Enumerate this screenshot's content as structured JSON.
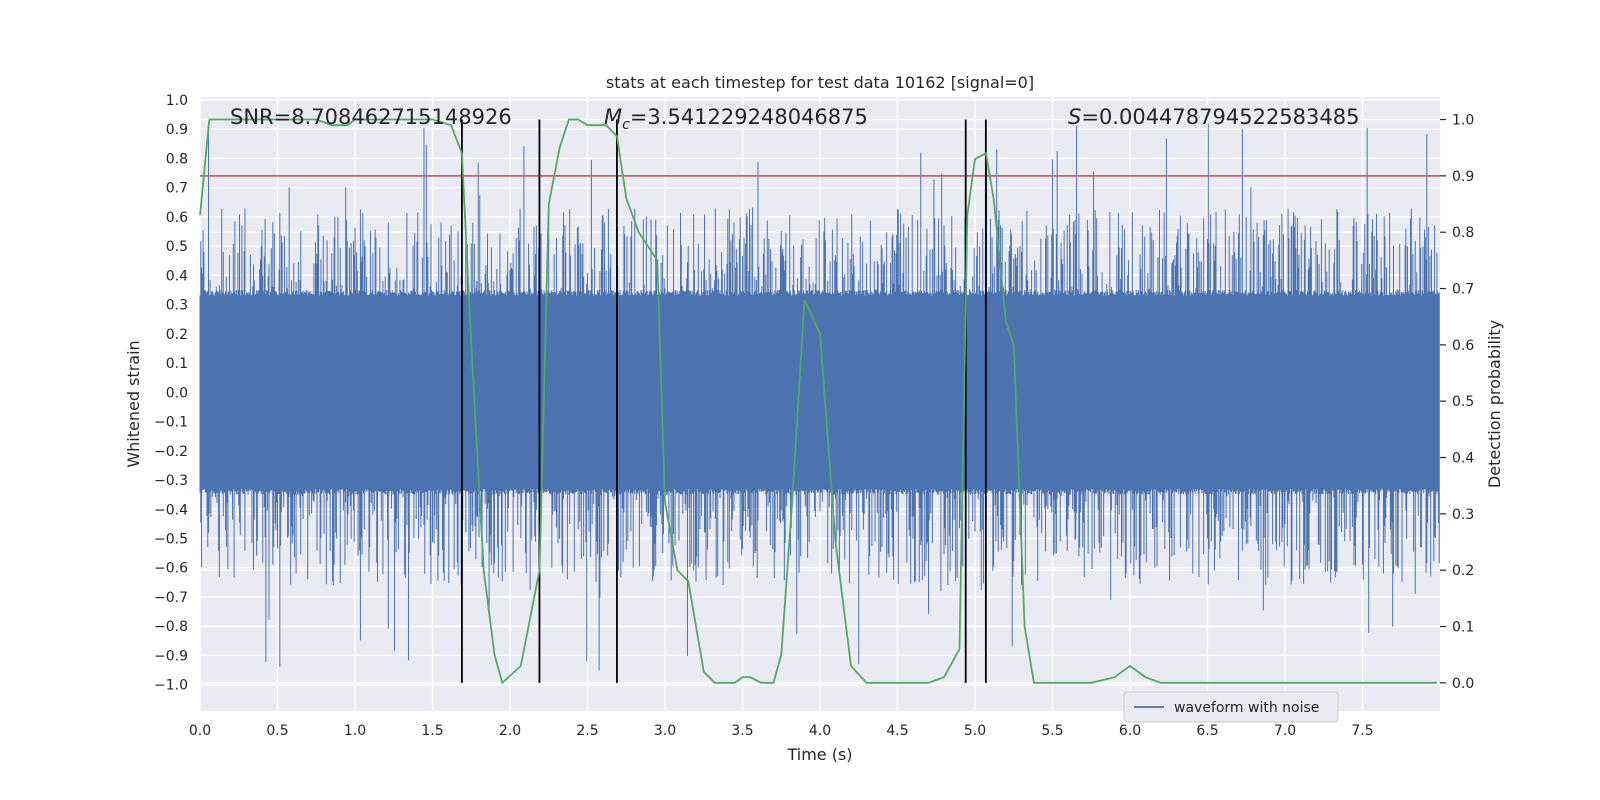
{
  "chart_data": {
    "type": "line",
    "title": "stats at each timestep for test data 10162 [signal=0]",
    "xlabel": "Time (s)",
    "ylabel_left": "Whitened strain",
    "ylabel_right": "Detection probability",
    "xlim": [
      0.0,
      8.0
    ],
    "ylim_left": [
      -1.09,
      1.01
    ],
    "ylim_right": [
      -0.05,
      1.04
    ],
    "xticks": [
      "0.0",
      "0.5",
      "1.0",
      "1.5",
      "2.0",
      "2.5",
      "3.0",
      "3.5",
      "4.0",
      "4.5",
      "5.0",
      "5.5",
      "6.0",
      "6.5",
      "7.0",
      "7.5"
    ],
    "yticks_left": [
      "1.0",
      "0.9",
      "0.8",
      "0.7",
      "0.6",
      "0.5",
      "0.4",
      "0.3",
      "0.2",
      "0.1",
      "0.0",
      "−0.1",
      "−0.2",
      "−0.3",
      "−0.4",
      "−0.5",
      "−0.6",
      "−0.7",
      "−0.8",
      "−0.9",
      "−1.0"
    ],
    "yticks_right": [
      "1.0",
      "0.9",
      "0.8",
      "0.7",
      "0.6",
      "0.5",
      "0.4",
      "0.3",
      "0.2",
      "0.1",
      "0.0"
    ],
    "grid": true,
    "legend": {
      "position": "lower-right",
      "entries": [
        "waveform with noise"
      ]
    },
    "annotations": {
      "snr": "SNR=8.708462715148926",
      "mc_symbol": "M",
      "mc_sub": "c",
      "mc_value": "=3.541229248046875",
      "s_symbol": "S",
      "s_value": "=0.004478794522583485"
    },
    "threshold": {
      "value": 0.9,
      "axis": "right",
      "color": "#c44e52"
    },
    "vlines_x": [
      1.69,
      2.19,
      2.69,
      4.94,
      5.07
    ],
    "series": [
      {
        "name": "waveform with noise",
        "axis": "left",
        "color": "#4c72b0",
        "kind": "noise-envelope",
        "sample_count": 1600,
        "core_amplitude": 0.33,
        "spike_max": 0.92,
        "spike_min": -1.0
      },
      {
        "name": "detection probability",
        "axis": "right",
        "color": "#55a868",
        "x": [
          0.0,
          0.06,
          0.12,
          0.25,
          0.5,
          0.75,
          0.85,
          0.95,
          1.0,
          1.25,
          1.5,
          1.62,
          1.69,
          1.75,
          1.83,
          1.9,
          1.95,
          2.07,
          2.19,
          2.25,
          2.32,
          2.38,
          2.44,
          2.5,
          2.62,
          2.69,
          2.75,
          2.83,
          2.95,
          3.0,
          3.08,
          3.15,
          3.25,
          3.32,
          3.45,
          3.5,
          3.55,
          3.62,
          3.7,
          3.75,
          3.82,
          3.9,
          4.0,
          4.1,
          4.2,
          4.3,
          4.5,
          4.62,
          4.7,
          4.8,
          4.9,
          4.95,
          5.0,
          5.07,
          5.12,
          5.2,
          5.25,
          5.32,
          5.38,
          5.5,
          5.75,
          5.9,
          6.0,
          6.1,
          6.2,
          6.3,
          6.4,
          6.5,
          6.6,
          6.7,
          6.8,
          6.9,
          7.0,
          7.2,
          7.3,
          7.5,
          7.7,
          7.8,
          7.9,
          7.98
        ],
        "values": [
          0.83,
          1.0,
          1.0,
          1.0,
          1.0,
          1.0,
          0.99,
          0.99,
          1.0,
          1.0,
          1.0,
          0.99,
          0.94,
          0.6,
          0.2,
          0.05,
          0.0,
          0.03,
          0.2,
          0.85,
          0.95,
          1.0,
          1.0,
          0.99,
          0.99,
          0.97,
          0.86,
          0.8,
          0.75,
          0.32,
          0.2,
          0.18,
          0.02,
          0.0,
          0.0,
          0.01,
          0.01,
          0.0,
          0.0,
          0.05,
          0.32,
          0.68,
          0.62,
          0.25,
          0.03,
          0.0,
          0.0,
          0.0,
          0.0,
          0.01,
          0.06,
          0.83,
          0.93,
          0.94,
          0.86,
          0.64,
          0.6,
          0.1,
          0.0,
          0.0,
          0.0,
          0.01,
          0.03,
          0.01,
          0.0,
          0.0,
          0.0,
          0.0,
          0.0,
          0.0,
          0.0,
          0.0,
          0.0,
          0.0,
          0.0,
          0.0,
          0.0,
          0.0,
          0.0,
          0.0
        ]
      }
    ]
  }
}
